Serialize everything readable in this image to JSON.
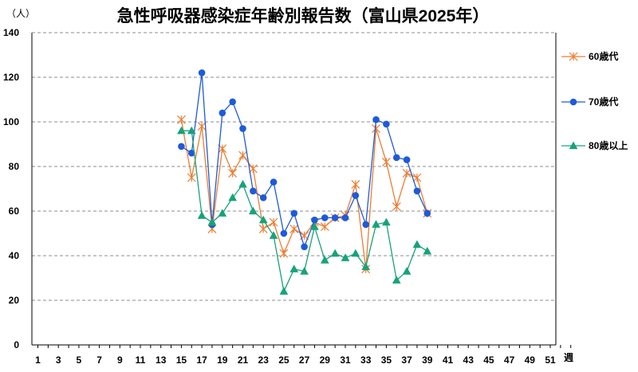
{
  "chart_data": {
    "type": "line",
    "title": "急性呼吸器感染症年齢別報告数（富山県2025年）",
    "ylabel": "（人）",
    "xlabel": "週",
    "ylim": [
      0,
      140
    ],
    "yticks": [
      0,
      20,
      40,
      60,
      80,
      100,
      120,
      140
    ],
    "xlim": [
      1,
      53
    ],
    "xticks": [
      1,
      3,
      5,
      7,
      9,
      11,
      13,
      15,
      17,
      19,
      21,
      23,
      25,
      27,
      29,
      31,
      33,
      35,
      37,
      39,
      41,
      43,
      45,
      47,
      49,
      51
    ],
    "grid": true,
    "legend_position": "right",
    "series": [
      {
        "name": "60歳代",
        "color": "#ED7D31",
        "marker": "asterisk",
        "x": [
          15,
          16,
          17,
          18,
          19,
          20,
          21,
          22,
          23,
          24,
          25,
          26,
          27,
          28,
          29,
          30,
          31,
          32,
          33,
          34,
          35,
          36,
          37,
          38,
          39
        ],
        "values": [
          101,
          75,
          98,
          52,
          88,
          77,
          85,
          79,
          52,
          55,
          41,
          52,
          49,
          55,
          53,
          57,
          58,
          72,
          34,
          97,
          82,
          62,
          77,
          75,
          59
        ]
      },
      {
        "name": "70歳代",
        "color": "#1F5BD8",
        "marker": "circle",
        "x": [
          15,
          16,
          17,
          18,
          19,
          20,
          21,
          22,
          23,
          24,
          25,
          26,
          27,
          28,
          29,
          30,
          31,
          32,
          33,
          34,
          35,
          36,
          37,
          38,
          39
        ],
        "values": [
          89,
          86,
          122,
          54,
          104,
          109,
          97,
          69,
          66,
          73,
          50,
          59,
          44,
          56,
          57,
          57,
          57,
          67,
          54,
          101,
          99,
          84,
          83,
          69,
          59
        ]
      },
      {
        "name": "80歳以上",
        "color": "#17A37A",
        "marker": "triangle",
        "x": [
          15,
          16,
          17,
          18,
          19,
          20,
          21,
          22,
          23,
          24,
          25,
          26,
          27,
          28,
          29,
          30,
          31,
          32,
          33,
          34,
          35,
          36,
          37,
          38,
          39
        ],
        "values": [
          96,
          96,
          58,
          55,
          59,
          66,
          72,
          60,
          56,
          49,
          24,
          34,
          33,
          53,
          38,
          41,
          39,
          41,
          35,
          54,
          55,
          29,
          33,
          45,
          42
        ]
      }
    ]
  }
}
